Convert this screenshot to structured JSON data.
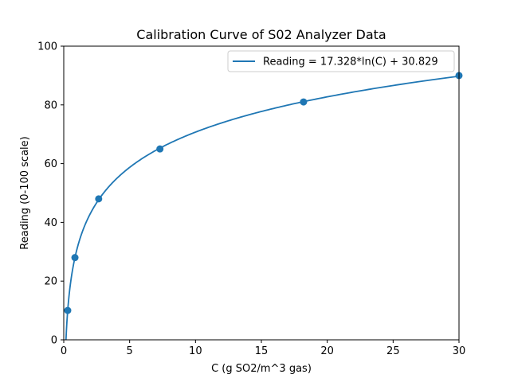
{
  "chart_data": {
    "type": "scatter",
    "title": "Calibration Curve of S02 Analyzer Data",
    "xlabel": "C (g SO2/m^3 gas)",
    "ylabel": "Reading (0-100 scale)",
    "xlim": [
      0,
      30
    ],
    "ylim": [
      0,
      100
    ],
    "xticks": [
      0,
      5,
      10,
      15,
      20,
      25,
      30
    ],
    "yticks": [
      0,
      20,
      40,
      60,
      80,
      100
    ],
    "grid": false,
    "legend_position": "top-right",
    "series": [
      {
        "name": "Reading = 17.328*ln(C) + 30.829",
        "kind": "line",
        "function": "17.328*ln(C) + 30.829",
        "a": 17.328,
        "b": 30.829,
        "color": "#1f77b4"
      },
      {
        "kind": "scatter",
        "color": "#1f77b4",
        "x": [
          0.3,
          0.85,
          2.65,
          7.3,
          18.2,
          30.0
        ],
        "y": [
          10,
          28,
          48,
          65,
          81,
          90
        ]
      }
    ]
  }
}
